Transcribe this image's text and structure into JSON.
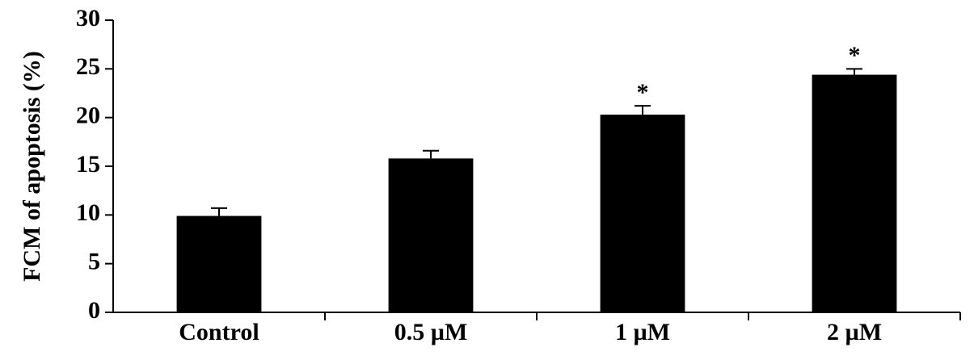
{
  "chart_data": {
    "type": "bar",
    "y_label": "FCM of apoptosis (%)",
    "categories": [
      "Control",
      "0.5 µM",
      "1 µM",
      "2 µM"
    ],
    "values": [
      9.9,
      15.8,
      20.3,
      24.4
    ],
    "errors": [
      0.8,
      0.8,
      0.9,
      0.6
    ],
    "significance": [
      null,
      null,
      "*",
      "*"
    ],
    "color": "#000000",
    "ylim": [
      0,
      30
    ],
    "yticks": [
      0,
      5,
      10,
      15,
      20,
      25,
      30
    ],
    "grid": false
  }
}
